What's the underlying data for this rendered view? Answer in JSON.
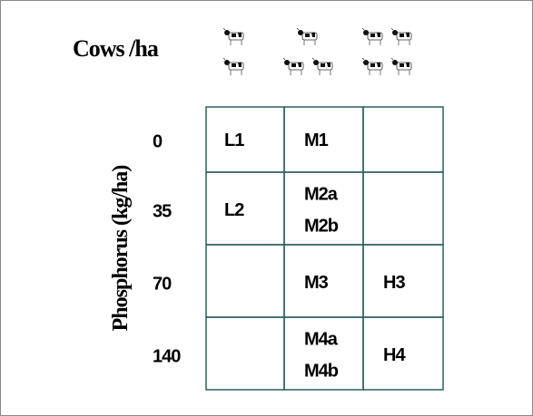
{
  "title": "Cows /ha",
  "y_axis_label": "Phosphorus (kg/ha)",
  "rows": [
    {
      "label": "0",
      "cells": [
        [
          "L1"
        ],
        [
          "M1"
        ],
        []
      ]
    },
    {
      "label": "35",
      "cells": [
        [
          "L2"
        ],
        [
          "M2a",
          "M2b"
        ],
        []
      ]
    },
    {
      "label": "70",
      "cells": [
        [],
        [
          "M3"
        ],
        [
          "H3"
        ]
      ]
    },
    {
      "label": "140",
      "cells": [
        [],
        [
          "M4a",
          "M4b"
        ],
        [
          "H4"
        ]
      ]
    }
  ]
}
